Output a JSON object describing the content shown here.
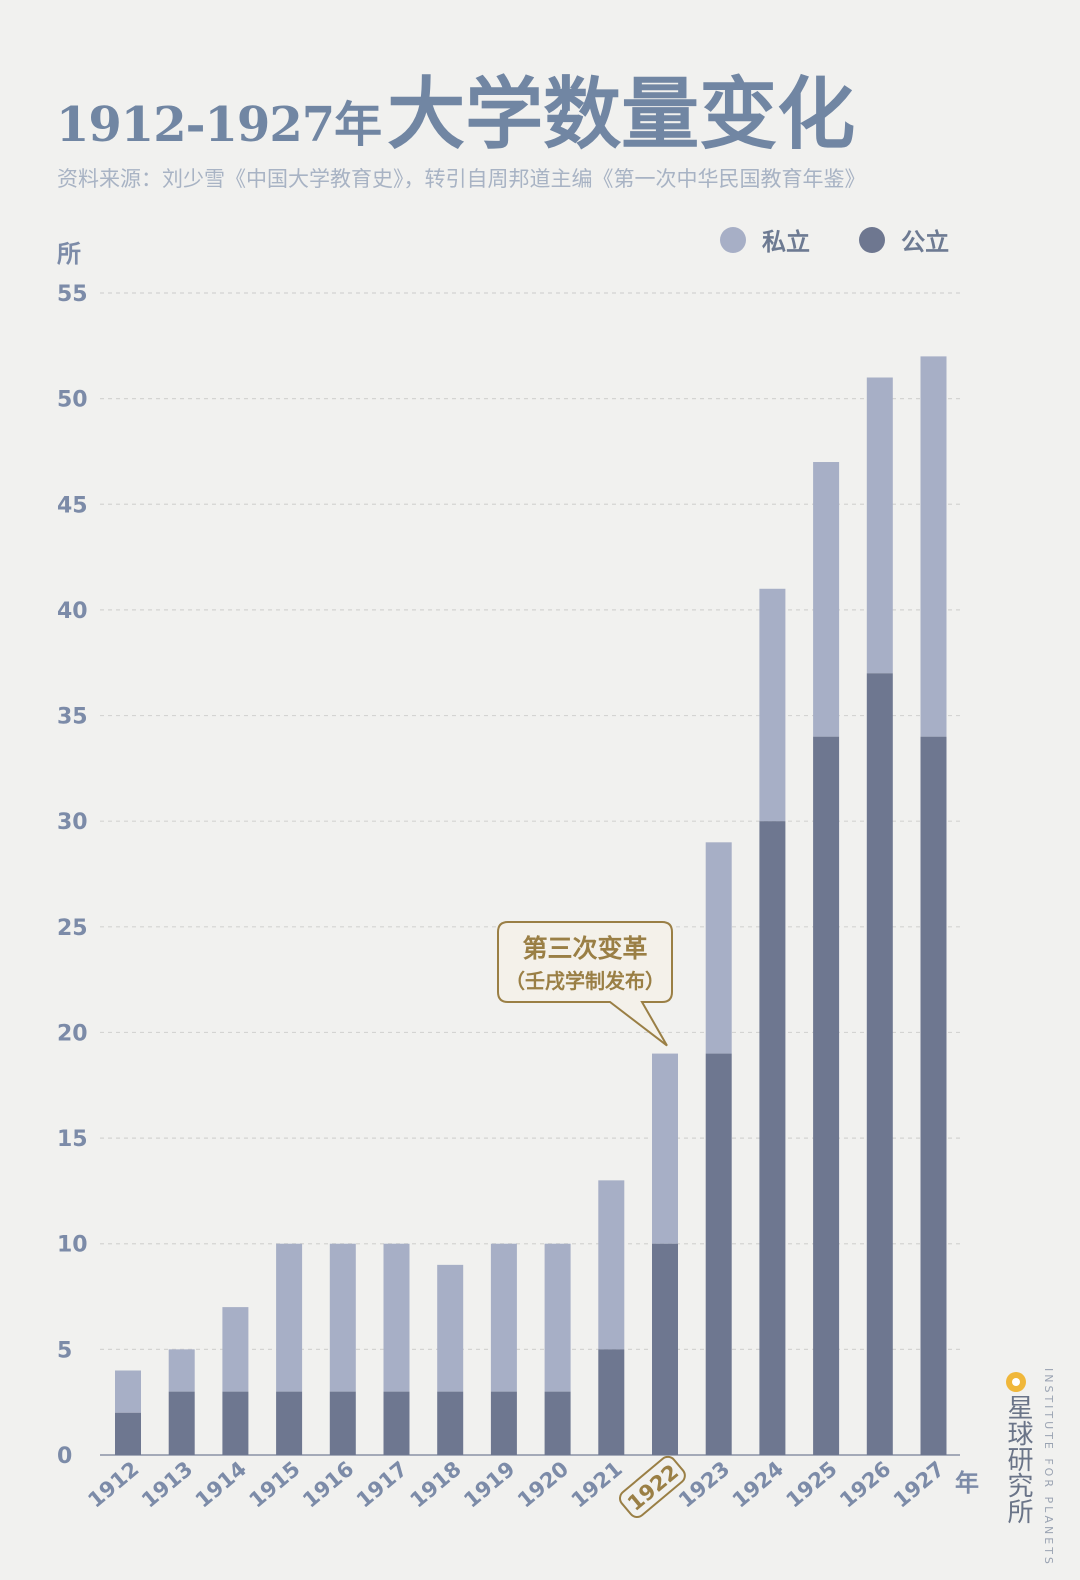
{
  "title": {
    "years": "1912-1927年",
    "main": "大学数量变化"
  },
  "source": "资料来源：刘少雪《中国大学教育史》，转引自周邦道主编《第一次中华民国教育年鉴》",
  "brand": {
    "cn": "星球研究所",
    "en": "INSTITUTE FOR PLANETS"
  },
  "colors": {
    "public": "#6e7790",
    "private": "#a7afc6",
    "grid": "#d4d4d2",
    "annotation": "#9a7f45"
  },
  "chart_data": {
    "type": "bar",
    "stacked": true,
    "categories": [
      "1912",
      "1913",
      "1914",
      "1915",
      "1916",
      "1917",
      "1918",
      "1919",
      "1920",
      "1921",
      "1922",
      "1923",
      "1924",
      "1925",
      "1926",
      "1927"
    ],
    "series": [
      {
        "name": "公立",
        "color": "#6e7790",
        "values": [
          2,
          3,
          3,
          3,
          3,
          3,
          3,
          3,
          3,
          5,
          10,
          19,
          30,
          34,
          37,
          34
        ]
      },
      {
        "name": "私立",
        "color": "#a7afc6",
        "values": [
          2,
          2,
          4,
          7,
          7,
          7,
          6,
          7,
          7,
          8,
          9,
          10,
          11,
          13,
          14,
          18
        ]
      }
    ],
    "ylabel": "所",
    "xlabel": "年",
    "ylim": [
      0,
      55
    ],
    "yticks": [
      0,
      5,
      10,
      15,
      20,
      25,
      30,
      35,
      40,
      45,
      50,
      55
    ],
    "grid": true,
    "legend": "top-right",
    "highlight_category": "1922",
    "annotation": {
      "target": "1922",
      "line1": "第三次变革",
      "line2": "（壬戌学制发布）"
    }
  }
}
